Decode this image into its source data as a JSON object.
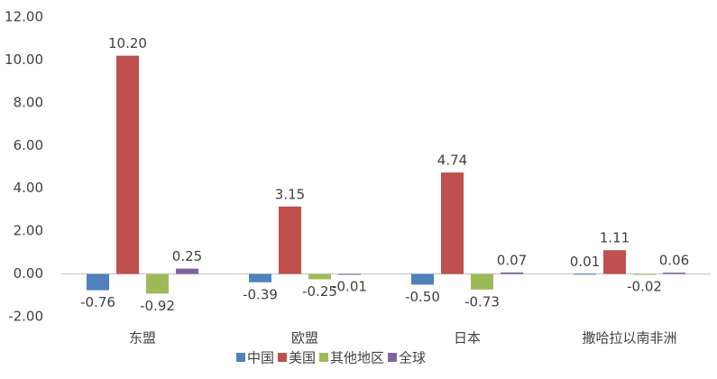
{
  "chart_data": {
    "type": "bar",
    "categories": [
      "东盟",
      "欧盟",
      "日本",
      "撒哈拉以南非洲"
    ],
    "series": [
      {
        "name": "中国",
        "color": "#4f81bd",
        "values": [
          -0.76,
          -0.39,
          -0.5,
          0.01
        ],
        "value_labels": [
          "-0.76",
          "-0.39",
          "-0.50",
          "0.01"
        ]
      },
      {
        "name": "美国",
        "color": "#c0504d",
        "values": [
          10.2,
          3.15,
          4.74,
          1.11
        ],
        "value_labels": [
          "10.20",
          "3.15",
          "4.74",
          "1.11"
        ]
      },
      {
        "name": "其他地区",
        "color": "#9bbb59",
        "values": [
          -0.92,
          -0.25,
          -0.73,
          -0.02
        ],
        "value_labels": [
          "-0.92",
          "-0.25",
          "-0.73",
          "-0.02"
        ]
      },
      {
        "name": "全球",
        "color": "#8064a2",
        "values": [
          0.25,
          -0.01,
          0.07,
          0.06
        ],
        "value_labels": [
          "0.25",
          "-0.01",
          "0.07",
          "0.06"
        ]
      }
    ],
    "ylim": [
      -2,
      12
    ],
    "yticks": [
      {
        "value": -2,
        "label": "-2.00"
      },
      {
        "value": 0,
        "label": "0.00"
      },
      {
        "value": 2,
        "label": "2.00"
      },
      {
        "value": 4,
        "label": "4.00"
      },
      {
        "value": 6,
        "label": "6.00"
      },
      {
        "value": 8,
        "label": "8.00"
      },
      {
        "value": 10,
        "label": "10.00"
      },
      {
        "value": 12,
        "label": "12.00"
      }
    ],
    "grid": false,
    "legend": "bottom"
  }
}
